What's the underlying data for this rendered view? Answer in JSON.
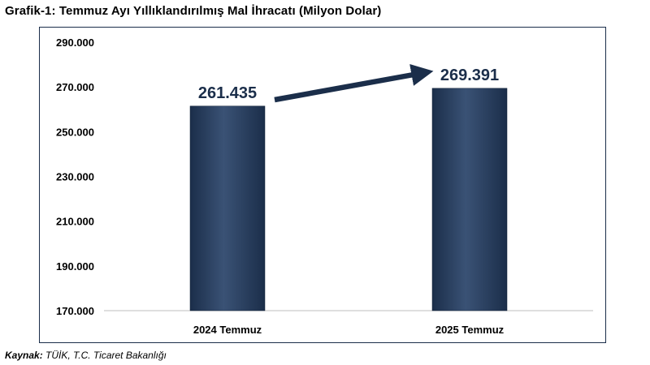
{
  "title": "Grafik-1: Temmuz Ayı Yıllıklandırılmış Mal İhracatı (Milyon Dolar)",
  "source": {
    "label": "Kaynak:",
    "text": "TÜİK, T.C. Ticaret Bakanlığı"
  },
  "colors": {
    "bar": "#1b2e4a",
    "bar_highlight": "#3a5275",
    "value_label": "#1b2e4a",
    "arrow": "#1b2e4a",
    "axis_text": "#000000"
  },
  "chart_data": {
    "type": "bar",
    "categories": [
      "2024 Temmuz",
      "2025 Temmuz"
    ],
    "values": [
      261435,
      269391
    ],
    "value_labels": [
      "261.435",
      "269.391"
    ],
    "yticks": [
      170000,
      190000,
      210000,
      230000,
      250000,
      270000,
      290000
    ],
    "ytick_labels": [
      "170.000",
      "190.000",
      "210.000",
      "230.000",
      "250.000",
      "270.000",
      "290.000"
    ],
    "ylim": [
      170000,
      290000
    ],
    "xlabel": "",
    "ylabel": "",
    "grid": false,
    "annotations": [
      {
        "type": "arrow",
        "from_category": "2024 Temmuz",
        "to_category": "2025 Temmuz",
        "meaning": "increase"
      }
    ]
  }
}
